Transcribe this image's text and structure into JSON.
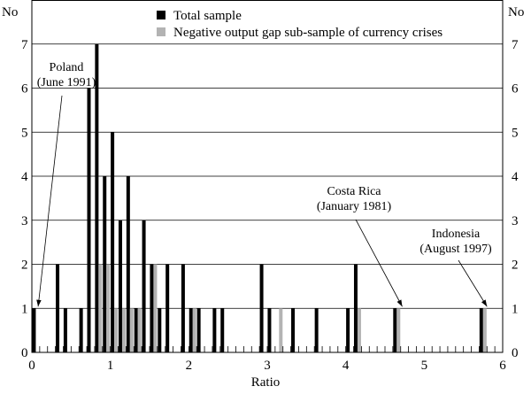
{
  "chart_data": {
    "type": "bar",
    "xlabel": "Ratio",
    "ylabel_left": "No",
    "ylabel_right": "No",
    "xlim": [
      0,
      6
    ],
    "ylim": [
      0,
      8
    ],
    "x_ticks": [
      0,
      1,
      2,
      3,
      4,
      5,
      6
    ],
    "y_ticks": [
      0,
      1,
      2,
      3,
      4,
      5,
      6,
      7
    ],
    "bin_width": 0.1,
    "grid": true,
    "legend_position": "top-center",
    "series": [
      {
        "name": "Total sample",
        "color": "#000000",
        "points": [
          {
            "x": 0.05,
            "y": 1
          },
          {
            "x": 0.35,
            "y": 2
          },
          {
            "x": 0.45,
            "y": 1
          },
          {
            "x": 0.65,
            "y": 1
          },
          {
            "x": 0.75,
            "y": 6
          },
          {
            "x": 0.85,
            "y": 7
          },
          {
            "x": 0.95,
            "y": 4
          },
          {
            "x": 1.05,
            "y": 5
          },
          {
            "x": 1.15,
            "y": 3
          },
          {
            "x": 1.25,
            "y": 4
          },
          {
            "x": 1.35,
            "y": 1
          },
          {
            "x": 1.45,
            "y": 3
          },
          {
            "x": 1.55,
            "y": 2
          },
          {
            "x": 1.65,
            "y": 1
          },
          {
            "x": 1.75,
            "y": 2
          },
          {
            "x": 1.95,
            "y": 2
          },
          {
            "x": 2.05,
            "y": 1
          },
          {
            "x": 2.15,
            "y": 1
          },
          {
            "x": 2.35,
            "y": 1
          },
          {
            "x": 2.45,
            "y": 1
          },
          {
            "x": 2.95,
            "y": 2
          },
          {
            "x": 3.05,
            "y": 1
          },
          {
            "x": 3.35,
            "y": 1
          },
          {
            "x": 3.65,
            "y": 1
          },
          {
            "x": 4.05,
            "y": 1
          },
          {
            "x": 4.15,
            "y": 2
          },
          {
            "x": 4.65,
            "y": 1
          },
          {
            "x": 5.75,
            "y": 1
          }
        ]
      },
      {
        "name": "Negative output gap sub-sample of currency crises",
        "color": "#b3b3b3",
        "points": [
          {
            "x": 0.85,
            "y": 2
          },
          {
            "x": 0.95,
            "y": 2
          },
          {
            "x": 1.05,
            "y": 1
          },
          {
            "x": 1.15,
            "y": 1
          },
          {
            "x": 1.25,
            "y": 1
          },
          {
            "x": 1.35,
            "y": 1
          },
          {
            "x": 1.55,
            "y": 2
          },
          {
            "x": 2.05,
            "y": 1
          },
          {
            "x": 3.15,
            "y": 1
          },
          {
            "x": 4.15,
            "y": 1
          },
          {
            "x": 4.65,
            "y": 1
          },
          {
            "x": 5.75,
            "y": 1
          }
        ]
      }
    ],
    "annotations": [
      {
        "lines": [
          "Poland",
          "(June 1991)"
        ],
        "x": 0.08,
        "y": 1
      },
      {
        "lines": [
          "Costa Rica",
          "(January 1981)"
        ],
        "x": 4.72,
        "y": 1
      },
      {
        "lines": [
          "Indonesia",
          "(August 1997)"
        ],
        "x": 5.8,
        "y": 1
      }
    ]
  }
}
